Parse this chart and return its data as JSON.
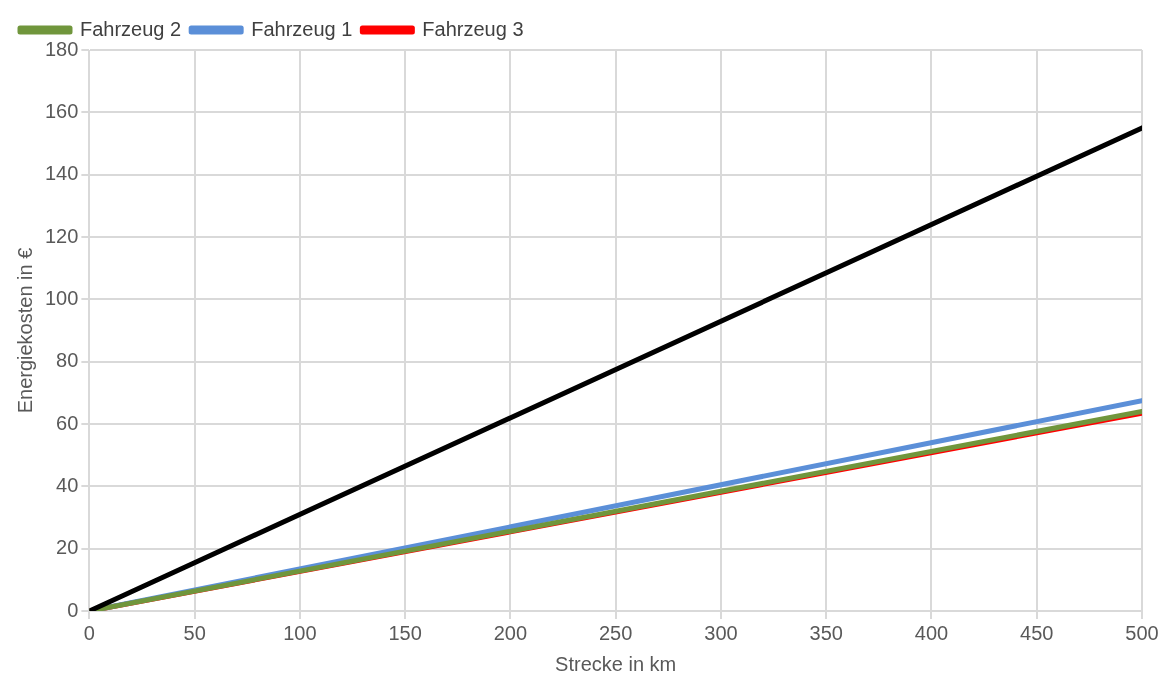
{
  "chart_data": {
    "type": "line",
    "xlabel": "Strecke in km",
    "ylabel": "Energiekosten in €",
    "x": [
      0,
      500
    ],
    "series": [
      {
        "color": "#000000",
        "values": [
          0,
          155
        ]
      },
      {
        "name": "Fahrzeug 2",
        "color": "#70963c",
        "values": [
          0,
          64
        ]
      },
      {
        "name": "Fahrzeug 1",
        "color": "#5b8fd8",
        "values": [
          0,
          67.5
        ]
      },
      {
        "name": "Fahrzeug 3",
        "color": "#ff0000",
        "values": [
          0,
          63.5
        ]
      }
    ],
    "xlim": [
      0,
      500
    ],
    "xticks": [
      0,
      50,
      100,
      150,
      200,
      250,
      300,
      350,
      400,
      450,
      500
    ],
    "ylim": [
      0,
      180
    ],
    "yticks": [
      0,
      20,
      40,
      60,
      80,
      100,
      120,
      140,
      160,
      180
    ],
    "grid": true,
    "legend": "top left",
    "marker": "none",
    "line_style": "solid"
  }
}
